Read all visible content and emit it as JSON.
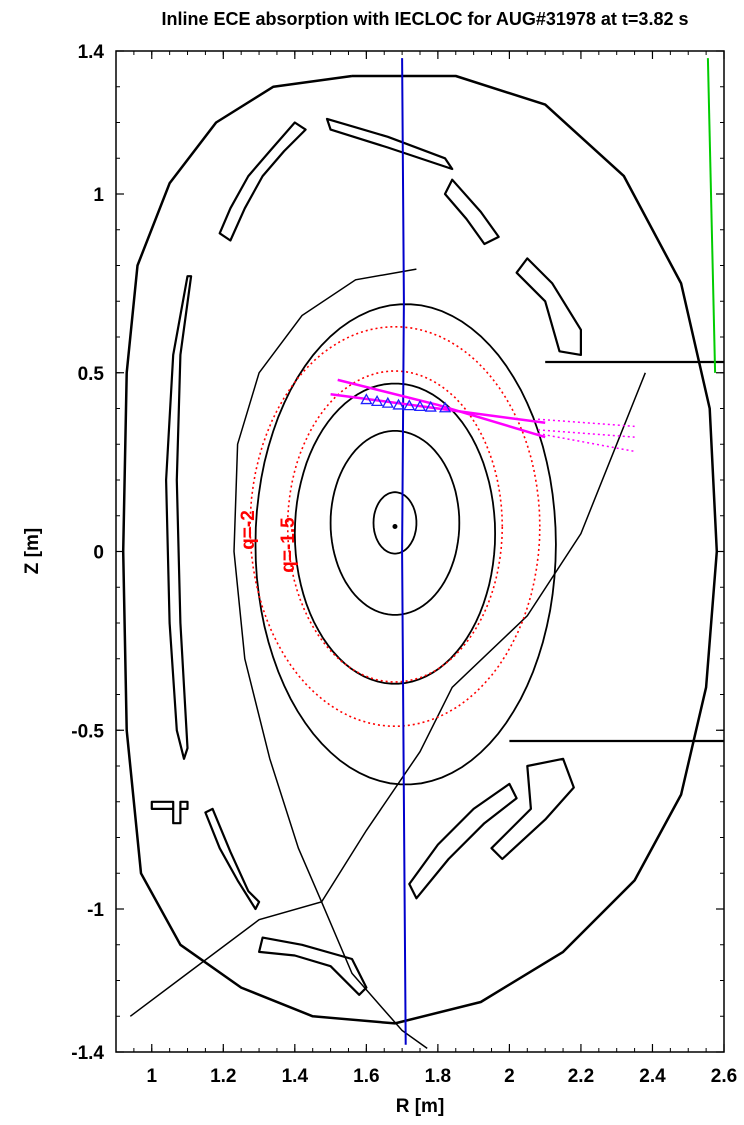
{
  "chart_data": {
    "type": "line",
    "title": "Inline ECE absorption with IECLOC for AUG#31978 at t=3.82 s",
    "xlabel": "R [m]",
    "ylabel": "Z [m]",
    "xlim": [
      0.9,
      2.6
    ],
    "ylim": [
      -1.4,
      1.4
    ],
    "x_ticks": [
      "1",
      "1.2",
      "1.4",
      "1.6",
      "1.8",
      "2",
      "2.2",
      "2.4",
      "2.6"
    ],
    "y_ticks": [
      "1.4",
      "1",
      "0.5",
      "0",
      "-0.5",
      "-1",
      "-1.4"
    ],
    "grid": false,
    "magnetic_axis": [
      1.68,
      0.07
    ],
    "flux_surfaces": [
      {
        "r0": 1.68,
        "z0": 0.08,
        "a": 0.06,
        "kappa": 1.43
      },
      {
        "r0": 1.68,
        "z0": 0.08,
        "a": 0.18,
        "kappa": 1.43
      },
      {
        "r0": 1.68,
        "z0": 0.05,
        "a": 0.28,
        "kappa": 1.5
      },
      {
        "r0": 1.71,
        "z0": 0.02,
        "a": 0.42,
        "kappa": 1.6
      }
    ],
    "q_surfaces": [
      {
        "label": "q=-1.5",
        "color": "#ff0000",
        "r0": 1.68,
        "z0": 0.07,
        "a": 0.3,
        "kappa": 1.45
      },
      {
        "label": "q=-2",
        "color": "#ff0000",
        "r0": 1.68,
        "z0": 0.07,
        "a": 0.405,
        "kappa": 1.38
      }
    ],
    "separatrix": [
      [
        1.74,
        0.79
      ],
      [
        1.57,
        0.76
      ],
      [
        1.42,
        0.66
      ],
      [
        1.3,
        0.5
      ],
      [
        1.24,
        0.3
      ],
      [
        1.23,
        0.0
      ],
      [
        1.26,
        -0.3
      ],
      [
        1.33,
        -0.58
      ],
      [
        1.41,
        -0.83
      ],
      [
        1.475,
        -0.98
      ],
      [
        1.56,
        -1.18
      ],
      [
        1.7,
        -1.34
      ],
      [
        1.77,
        -1.39
      ]
    ],
    "separatrix_leg": [
      [
        0.94,
        -1.3
      ],
      [
        1.1,
        -1.18
      ],
      [
        1.3,
        -1.03
      ],
      [
        1.475,
        -0.98
      ],
      [
        1.6,
        -0.78
      ],
      [
        1.75,
        -0.56
      ],
      [
        1.84,
        -0.38
      ],
      [
        2.05,
        -0.18
      ],
      [
        2.2,
        0.05
      ],
      [
        2.3,
        0.3
      ],
      [
        2.38,
        0.5
      ]
    ],
    "vessel": [
      [
        1.56,
        1.33
      ],
      [
        1.34,
        1.3
      ],
      [
        1.18,
        1.2
      ],
      [
        1.05,
        1.03
      ],
      [
        0.96,
        0.8
      ],
      [
        0.93,
        0.5
      ],
      [
        0.92,
        0.0
      ],
      [
        0.93,
        -0.5
      ],
      [
        0.97,
        -0.9
      ],
      [
        1.08,
        -1.1
      ],
      [
        1.25,
        -1.22
      ],
      [
        1.45,
        -1.3
      ],
      [
        1.68,
        -1.32
      ],
      [
        1.92,
        -1.26
      ],
      [
        2.15,
        -1.12
      ],
      [
        2.35,
        -0.92
      ],
      [
        2.48,
        -0.68
      ],
      [
        2.55,
        -0.38
      ],
      [
        2.58,
        0.0
      ],
      [
        2.56,
        0.4
      ],
      [
        2.48,
        0.75
      ],
      [
        2.32,
        1.05
      ],
      [
        2.1,
        1.25
      ],
      [
        1.85,
        1.33
      ],
      [
        1.56,
        1.33
      ]
    ],
    "ece_beams": [
      {
        "color": "#ff00ff",
        "style": "solid",
        "points": [
          [
            1.5,
            0.44
          ],
          [
            1.8,
            0.4
          ],
          [
            2.1,
            0.36
          ]
        ]
      },
      {
        "color": "#ff00ff",
        "style": "solid",
        "points": [
          [
            1.52,
            0.48
          ],
          [
            1.8,
            0.41
          ],
          [
            2.1,
            0.32
          ]
        ]
      },
      {
        "color": "#ff00ff",
        "style": "dotted",
        "points": [
          [
            2.08,
            0.37
          ],
          [
            2.35,
            0.35
          ]
        ]
      },
      {
        "color": "#ff00ff",
        "style": "dotted",
        "points": [
          [
            2.08,
            0.34
          ],
          [
            2.35,
            0.32
          ]
        ]
      },
      {
        "color": "#ff00ff",
        "style": "dotted",
        "points": [
          [
            2.08,
            0.33
          ],
          [
            2.35,
            0.28
          ]
        ]
      }
    ],
    "ece_absorption_markers": {
      "color": "#2020ff",
      "points": [
        [
          1.6,
          0.425
        ],
        [
          1.63,
          0.42
        ],
        [
          1.66,
          0.415
        ],
        [
          1.69,
          0.41
        ],
        [
          1.72,
          0.408
        ],
        [
          1.75,
          0.406
        ],
        [
          1.78,
          0.404
        ],
        [
          1.82,
          0.402
        ]
      ]
    },
    "blue_line": {
      "color": "#0000cc",
      "points": [
        [
          1.7,
          1.38
        ],
        [
          1.705,
          0.7
        ],
        [
          1.7,
          0.0
        ],
        [
          1.705,
          -0.7
        ],
        [
          1.71,
          -1.38
        ]
      ]
    },
    "green_line": {
      "color": "#00cc00",
      "points": [
        [
          2.555,
          1.38
        ],
        [
          2.575,
          0.5
        ]
      ]
    },
    "port_lines": [
      {
        "points": [
          [
            2.1,
            0.53
          ],
          [
            2.6,
            0.53
          ]
        ]
      },
      {
        "points": [
          [
            2.0,
            -0.53
          ],
          [
            2.6,
            -0.53
          ]
        ]
      }
    ],
    "structures": [
      {
        "name": "upper-tiles-1",
        "points": [
          [
            1.22,
            0.87
          ],
          [
            1.26,
            0.96
          ],
          [
            1.31,
            1.05
          ],
          [
            1.37,
            1.12
          ],
          [
            1.43,
            1.18
          ],
          [
            1.4,
            1.2
          ],
          [
            1.33,
            1.12
          ],
          [
            1.27,
            1.05
          ],
          [
            1.22,
            0.96
          ],
          [
            1.19,
            0.89
          ]
        ]
      },
      {
        "name": "upper-tiles-2",
        "points": [
          [
            1.49,
            1.21
          ],
          [
            1.66,
            1.16
          ],
          [
            1.82,
            1.1
          ],
          [
            1.84,
            1.07
          ],
          [
            1.66,
            1.13
          ],
          [
            1.5,
            1.18
          ]
        ]
      },
      {
        "name": "upper-tiles-3",
        "points": [
          [
            1.84,
            1.04
          ],
          [
            1.92,
            0.95
          ],
          [
            1.97,
            0.88
          ],
          [
            1.93,
            0.86
          ],
          [
            1.88,
            0.93
          ],
          [
            1.82,
            1.0
          ]
        ]
      },
      {
        "name": "upper-tiles-4",
        "points": [
          [
            2.02,
            0.78
          ],
          [
            2.1,
            0.7
          ],
          [
            2.14,
            0.56
          ],
          [
            2.2,
            0.55
          ],
          [
            2.2,
            0.62
          ],
          [
            2.12,
            0.75
          ],
          [
            2.05,
            0.82
          ]
        ]
      },
      {
        "name": "inner-wall",
        "points": [
          [
            1.1,
            0.77
          ],
          [
            1.06,
            0.55
          ],
          [
            1.04,
            0.2
          ],
          [
            1.05,
            -0.2
          ],
          [
            1.07,
            -0.5
          ],
          [
            1.09,
            -0.58
          ],
          [
            1.1,
            -0.55
          ],
          [
            1.08,
            -0.2
          ],
          [
            1.07,
            0.2
          ],
          [
            1.08,
            0.55
          ],
          [
            1.11,
            0.77
          ]
        ]
      },
      {
        "name": "lower-divertor-1",
        "points": [
          [
            1.17,
            -0.72
          ],
          [
            1.22,
            -0.84
          ],
          [
            1.27,
            -0.95
          ],
          [
            1.3,
            -0.98
          ],
          [
            1.29,
            -1.0
          ],
          [
            1.24,
            -0.92
          ],
          [
            1.19,
            -0.83
          ],
          [
            1.15,
            -0.73
          ]
        ]
      },
      {
        "name": "lower-divertor-2",
        "points": [
          [
            1.31,
            -1.08
          ],
          [
            1.42,
            -1.1
          ],
          [
            1.56,
            -1.14
          ],
          [
            1.6,
            -1.22
          ],
          [
            1.58,
            -1.24
          ],
          [
            1.5,
            -1.16
          ],
          [
            1.4,
            -1.13
          ],
          [
            1.3,
            -1.12
          ]
        ]
      },
      {
        "name": "lower-divertor-3",
        "points": [
          [
            1.72,
            -0.93
          ],
          [
            1.8,
            -0.82
          ],
          [
            1.9,
            -0.72
          ],
          [
            2.0,
            -0.65
          ],
          [
            2.02,
            -0.69
          ],
          [
            1.93,
            -0.76
          ],
          [
            1.83,
            -0.86
          ],
          [
            1.74,
            -0.97
          ]
        ]
      },
      {
        "name": "lower-divertor-4",
        "points": [
          [
            2.05,
            -0.6
          ],
          [
            2.15,
            -0.58
          ],
          [
            2.18,
            -0.66
          ],
          [
            2.1,
            -0.75
          ],
          [
            1.98,
            -0.86
          ],
          [
            1.95,
            -0.83
          ],
          [
            2.06,
            -0.72
          ]
        ]
      },
      {
        "name": "t-support",
        "points": [
          [
            1.0,
            -0.7
          ],
          [
            1.06,
            -0.7
          ],
          [
            1.06,
            -0.76
          ],
          [
            1.08,
            -0.76
          ],
          [
            1.08,
            -0.7
          ],
          [
            1.1,
            -0.7
          ],
          [
            1.1,
            -0.72
          ],
          [
            1.08,
            -0.72
          ],
          [
            1.08,
            -0.76
          ],
          [
            1.06,
            -0.76
          ],
          [
            1.06,
            -0.72
          ],
          [
            1.0,
            -0.72
          ]
        ]
      }
    ]
  }
}
